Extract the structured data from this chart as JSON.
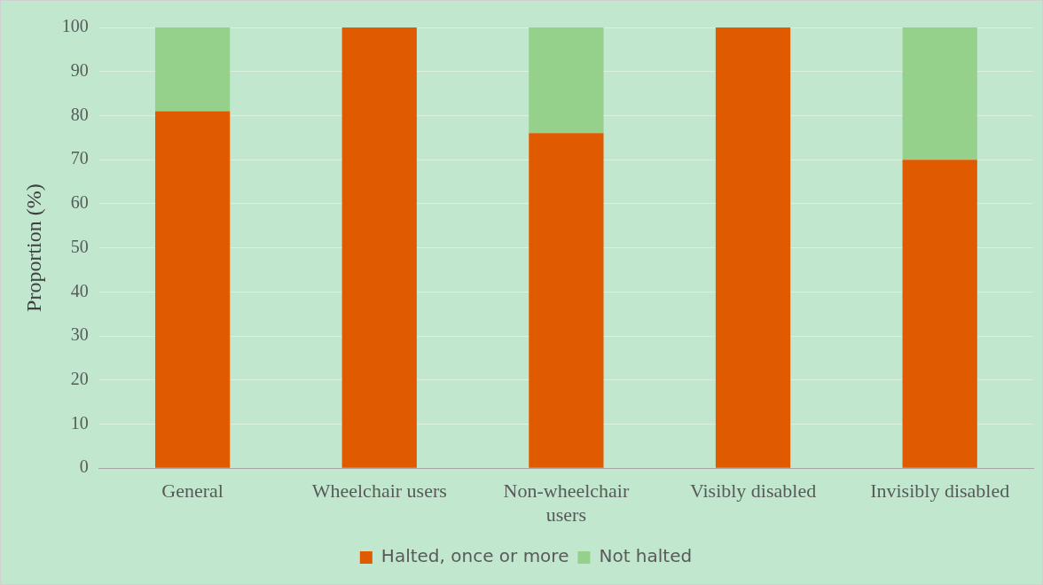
{
  "chart_data": {
    "type": "bar",
    "stacked": true,
    "ylabel": "Proportion (%)",
    "categories": [
      "General",
      "Wheelchair users",
      "Non-wheelchair users",
      "Visibly disabled",
      "Invisibly disabled"
    ],
    "series": [
      {
        "name": "Halted, once or more",
        "color": "#e05a00",
        "values": [
          81,
          100,
          76,
          100,
          70
        ]
      },
      {
        "name": "Not halted",
        "color": "#95d18a",
        "values": [
          19,
          0,
          24,
          0,
          30
        ]
      }
    ],
    "ylim": [
      0,
      100
    ],
    "yticks": [
      0,
      10,
      20,
      30,
      40,
      50,
      60,
      70,
      80,
      90,
      100
    ],
    "grid": "y",
    "legend": "bottom"
  }
}
